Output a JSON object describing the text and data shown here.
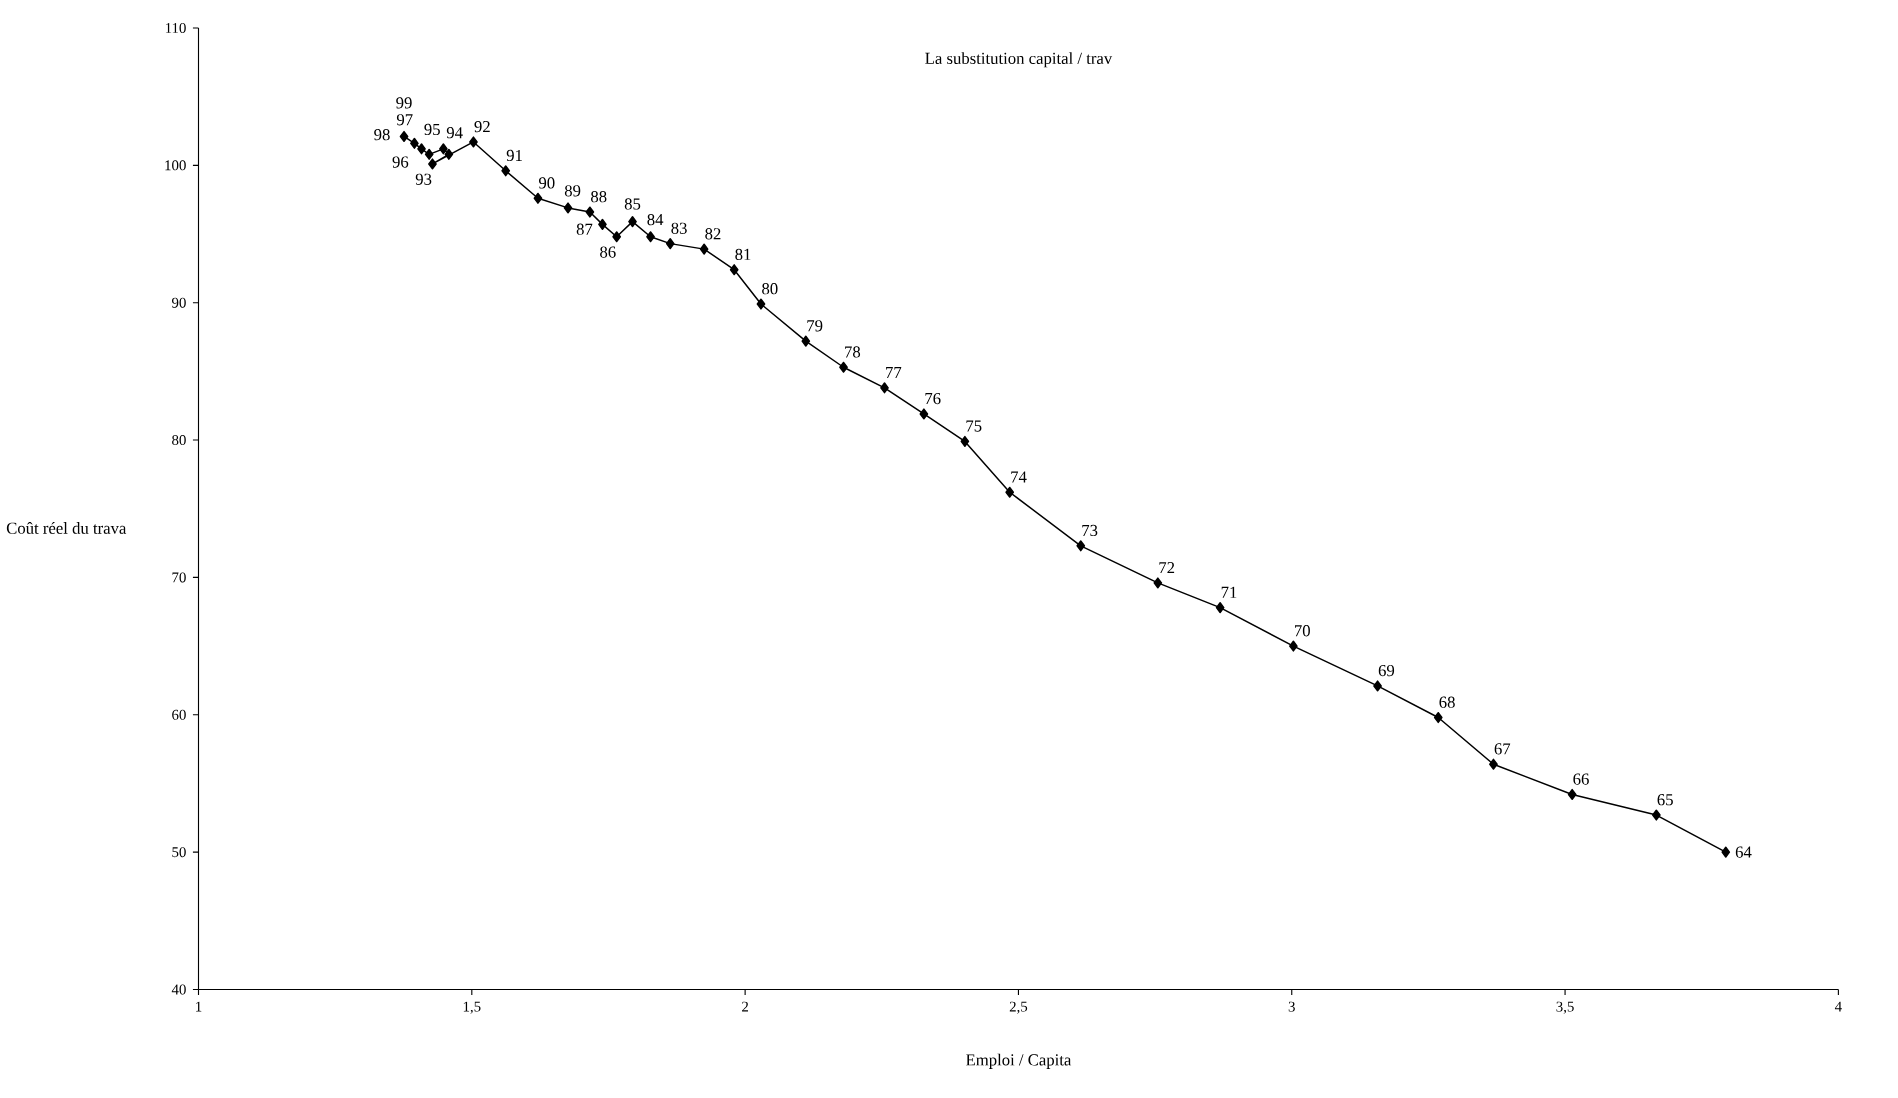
{
  "chart_data": {
    "type": "line",
    "title": "La substitution capital / trav",
    "xlabel": "Emploi / Capita",
    "ylabel": "Coût réel du trava",
    "xlim": [
      1,
      4
    ],
    "xticks": [
      1,
      {
        "value": 1.5,
        "label": "1,5"
      },
      2,
      {
        "value": 2.5,
        "label": "2,5"
      },
      3,
      {
        "value": 3.5,
        "label": "3,5"
      },
      4
    ],
    "ylim": [
      40,
      110
    ],
    "yticks": [
      40,
      50,
      60,
      70,
      80,
      90,
      100,
      110
    ],
    "marker": "diamond",
    "line_style": "solid",
    "series": [
      {
        "color": "#000000",
        "x": [
          3.794,
          3.667,
          3.513,
          3.369,
          3.268,
          3.157,
          3.003,
          2.869,
          2.755,
          2.614,
          2.484,
          2.402,
          2.327,
          2.255,
          2.18,
          2.111,
          2.029,
          1.98,
          1.925,
          1.863,
          1.827,
          1.794,
          1.765,
          1.739,
          1.716,
          1.676,
          1.621,
          1.562,
          1.503,
          1.428,
          1.458,
          1.448,
          1.422,
          1.408,
          1.395,
          1.376
        ],
        "values": [
          50.0,
          52.7,
          54.2,
          56.4,
          59.8,
          62.1,
          65.0,
          67.8,
          69.6,
          72.3,
          76.2,
          79.9,
          81.9,
          83.8,
          85.3,
          87.2,
          89.9,
          92.4,
          93.9,
          94.3,
          94.8,
          95.9,
          94.8,
          95.7,
          96.6,
          96.9,
          97.6,
          99.6,
          101.7,
          100.1,
          100.8,
          101.2,
          100.8,
          101.2,
          101.6,
          102.1
        ]
      }
    ],
    "annotations": [
      {
        "text": "64",
        "x": 3.794,
        "y": 50.0
      },
      {
        "text": "65",
        "x": 3.667,
        "y": 52.7
      },
      {
        "text": "66",
        "x": 3.513,
        "y": 54.2
      },
      {
        "text": "67",
        "x": 3.369,
        "y": 56.4
      },
      {
        "text": "68",
        "x": 3.268,
        "y": 59.8
      },
      {
        "text": "69",
        "x": 3.157,
        "y": 62.1
      },
      {
        "text": "70",
        "x": 3.003,
        "y": 65.0
      },
      {
        "text": "71",
        "x": 2.869,
        "y": 67.8
      },
      {
        "text": "72",
        "x": 2.755,
        "y": 69.6
      },
      {
        "text": "73",
        "x": 2.614,
        "y": 72.3
      },
      {
        "text": "74",
        "x": 2.484,
        "y": 76.2
      },
      {
        "text": "75",
        "x": 2.402,
        "y": 79.9
      },
      {
        "text": "76",
        "x": 2.327,
        "y": 81.9
      },
      {
        "text": "77",
        "x": 2.255,
        "y": 83.8
      },
      {
        "text": "78",
        "x": 2.18,
        "y": 85.3
      },
      {
        "text": "79",
        "x": 2.111,
        "y": 87.2
      },
      {
        "text": "80",
        "x": 2.029,
        "y": 89.9
      },
      {
        "text": "81",
        "x": 1.98,
        "y": 92.4
      },
      {
        "text": "82",
        "x": 1.925,
        "y": 93.9
      },
      {
        "text": "83",
        "x": 1.863,
        "y": 94.3
      },
      {
        "text": "84",
        "x": 1.827,
        "y": 94.8
      },
      {
        "text": "85",
        "x": 1.794,
        "y": 95.9
      },
      {
        "text": "86",
        "x": 1.765,
        "y": 94.8
      },
      {
        "text": "87",
        "x": 1.739,
        "y": 95.7
      },
      {
        "text": "88",
        "x": 1.716,
        "y": 96.6
      },
      {
        "text": "89",
        "x": 1.676,
        "y": 96.9
      },
      {
        "text": "90",
        "x": 1.621,
        "y": 97.6
      },
      {
        "text": "91",
        "x": 1.562,
        "y": 99.6
      },
      {
        "text": "92",
        "x": 1.503,
        "y": 101.7
      },
      {
        "text": "93",
        "x": 1.428,
        "y": 100.1
      },
      {
        "text": "94",
        "x": 1.458,
        "y": 100.8
      },
      {
        "text": "95",
        "x": 1.448,
        "y": 101.2
      },
      {
        "text": "96",
        "x": 1.422,
        "y": 100.8
      },
      {
        "text": "97",
        "x": 1.408,
        "y": 101.2
      },
      {
        "text": "98",
        "x": 1.395,
        "y": 101.6
      },
      {
        "text": "99",
        "x": 1.376,
        "y": 102.1
      }
    ]
  }
}
